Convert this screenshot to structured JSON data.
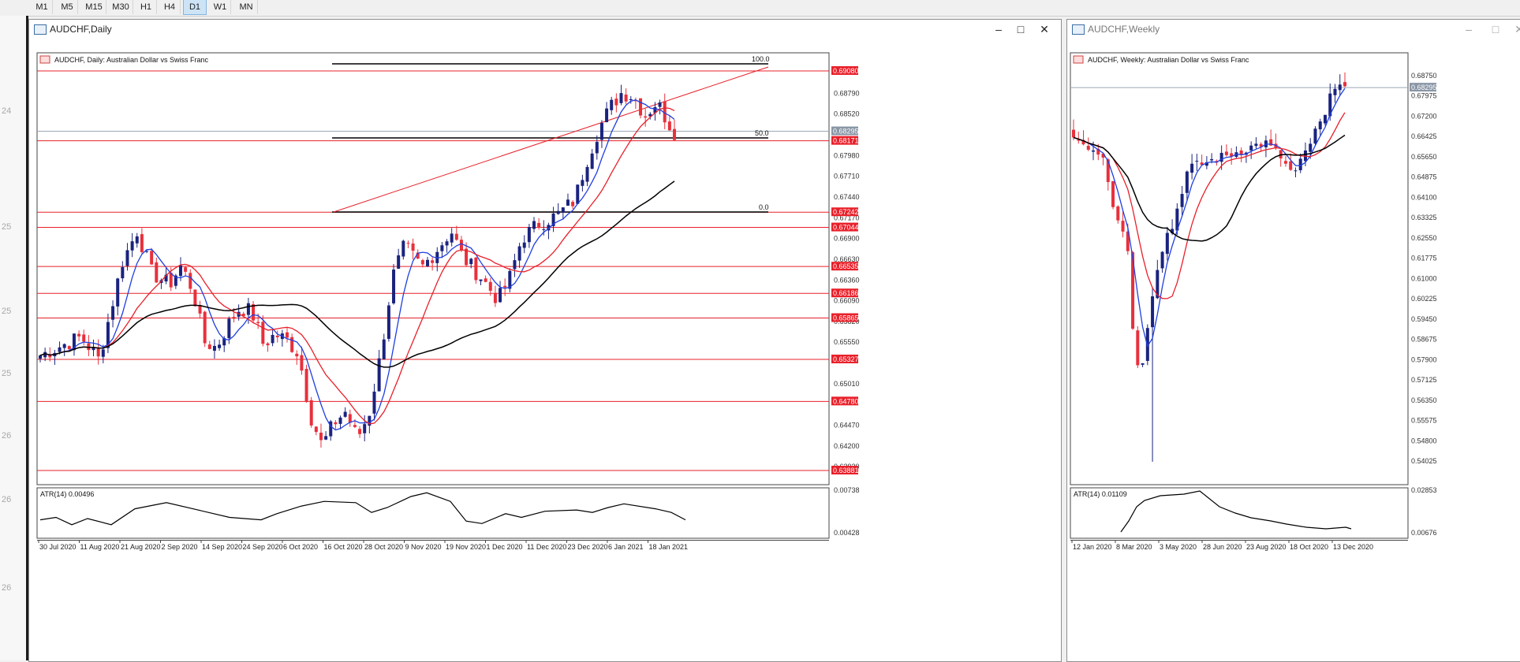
{
  "toolbar": {
    "timeframes": [
      "M1",
      "M5",
      "M15",
      "M30",
      "H1",
      "H4",
      "D1",
      "W1",
      "MN"
    ],
    "active": "D1"
  },
  "left_strip_labels": [
    "24",
    "25",
    "25",
    "25",
    "26",
    "26",
    "26"
  ],
  "daily_window": {
    "title": "AUDCHF,Daily",
    "chart_header": "AUDCHF, Daily:  Australian Dollar vs Swiss Franc",
    "price_ticks": [
      "0.68790",
      "0.68520",
      "0.67980",
      "0.67710",
      "0.67440",
      "0.67170",
      "0.66900",
      "0.66630",
      "0.66360",
      "0.66090",
      "0.65820",
      "0.65550",
      "0.65010",
      "0.64470",
      "0.64200",
      "0.63930"
    ],
    "date_ticks": [
      "30 Jul 2020",
      "11 Aug 2020",
      "21 Aug 2020",
      "2 Sep 2020",
      "14 Sep 2020",
      "24 Sep 2020",
      "6 Oct 2020",
      "16 Oct 2020",
      "28 Oct 2020",
      "9 Nov 2020",
      "19 Nov 2020",
      "1 Dec 2020",
      "11 Dec 2020",
      "23 Dec 2020",
      "6 Jan 2021",
      "18 Jan 2021"
    ],
    "sr_levels": [
      "0.69080",
      "0.68171",
      "0.67242",
      "0.67044",
      "0.66535",
      "0.66186",
      "0.65865",
      "0.65327",
      "0.64780",
      "0.63881"
    ],
    "current_price": "0.68295",
    "fib_labels": [
      "100.0",
      "50.0",
      "0.0"
    ],
    "atr_label": "ATR(14) 0.00496",
    "atr_ticks": [
      "0.00738",
      "0.00428"
    ]
  },
  "weekly_window": {
    "title": "AUDCHF,Weekly",
    "chart_header": "AUDCHF, Weekly:  Australian Dollar vs Swiss Franc",
    "price_ticks": [
      "0.68750",
      "0.67975",
      "0.67200",
      "0.66425",
      "0.65650",
      "0.64875",
      "0.64100",
      "0.63325",
      "0.62550",
      "0.61775",
      "0.61000",
      "0.60225",
      "0.59450",
      "0.58675",
      "0.57900",
      "0.57125",
      "0.56350",
      "0.55575",
      "0.54800",
      "0.54025"
    ],
    "current_price": "0.68295",
    "date_ticks": [
      "12 Jan 2020",
      "8 Mar 2020",
      "3 May 2020",
      "28 Jun 2020",
      "23 Aug 2020",
      "18 Oct 2020",
      "13 Dec 2020"
    ],
    "atr_label": "ATR(14) 0.01109",
    "atr_ticks": [
      "0.02853",
      "0.00676"
    ]
  },
  "colors": {
    "bull": "#1a237e",
    "bear": "#e8303c",
    "ma_fast": "#1f3fe0",
    "ma_mid": "#e8202a",
    "ma_slow": "#000000",
    "level_line": "#e8202a",
    "price_box": "#e8202a"
  }
}
